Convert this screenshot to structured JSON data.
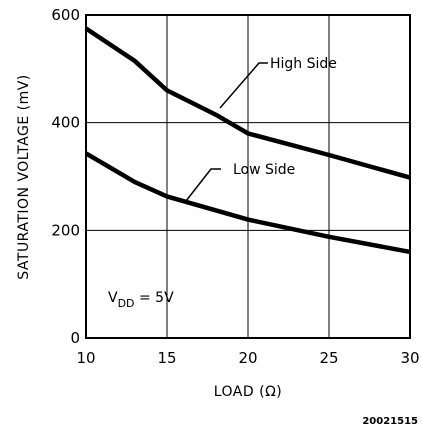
{
  "chart_data": {
    "type": "line",
    "title": "",
    "xlabel": "LOAD (Ω)",
    "ylabel": "SATURATION VOLTAGE (mV)",
    "xlim": [
      10,
      30
    ],
    "ylim": [
      0,
      600
    ],
    "x_ticks": [
      "10",
      "15",
      "20",
      "25",
      "30"
    ],
    "y_ticks": [
      "0",
      "200",
      "400",
      "600"
    ],
    "grid": true,
    "series": [
      {
        "name": "High Side",
        "points": [
          [
            10,
            575
          ],
          [
            13,
            515
          ],
          [
            15,
            460
          ],
          [
            18,
            415
          ],
          [
            20,
            380
          ],
          [
            25,
            340
          ],
          [
            30,
            298
          ]
        ]
      },
      {
        "name": "Low Side",
        "points": [
          [
            10,
            343
          ],
          [
            13,
            290
          ],
          [
            15,
            263
          ],
          [
            20,
            220
          ],
          [
            25,
            188
          ],
          [
            30,
            160
          ]
        ]
      }
    ],
    "annotations": {
      "condition_main": "V",
      "condition_sub": "DD",
      "condition_value": " = 5V"
    }
  },
  "figure_id": "20021515"
}
